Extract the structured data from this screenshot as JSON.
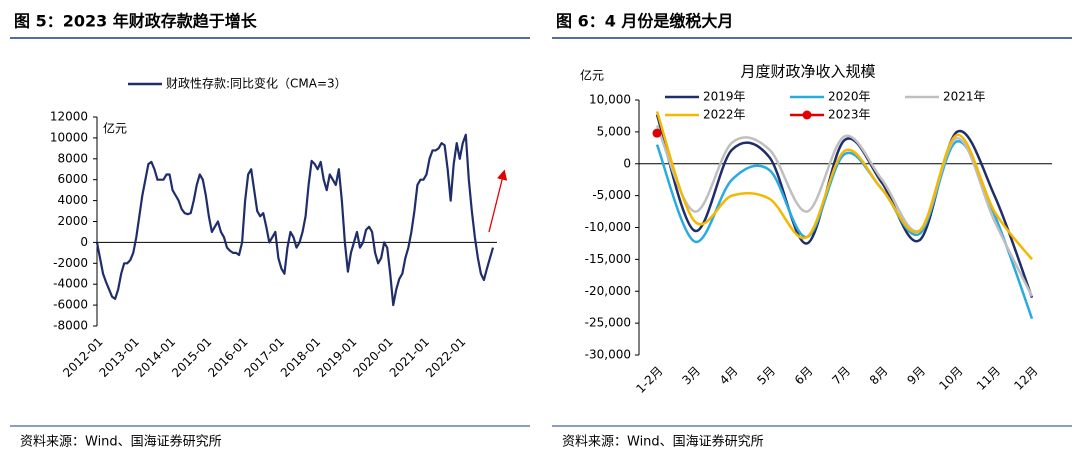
{
  "chart_data": [
    {
      "type": "line",
      "title": "图 5：2023 年财政存款趋于增长",
      "y_unit": "亿元",
      "source": "资料来源：Wind、国海证券研究所",
      "x": [
        "2012-01",
        null,
        null,
        null,
        null,
        null,
        null,
        null,
        null,
        null,
        null,
        null,
        "2013-01",
        null,
        null,
        null,
        null,
        null,
        null,
        null,
        null,
        null,
        null,
        null,
        "2014-01",
        null,
        null,
        null,
        null,
        null,
        null,
        null,
        null,
        null,
        null,
        null,
        "2015-01",
        null,
        null,
        null,
        null,
        null,
        null,
        null,
        null,
        null,
        null,
        null,
        "2016-01",
        null,
        null,
        null,
        null,
        null,
        null,
        null,
        null,
        null,
        null,
        null,
        "2017-01",
        null,
        null,
        null,
        null,
        null,
        null,
        null,
        null,
        null,
        null,
        null,
        "2018-01",
        null,
        null,
        null,
        null,
        null,
        null,
        null,
        null,
        null,
        null,
        null,
        "2019-01",
        null,
        null,
        null,
        null,
        null,
        null,
        null,
        null,
        null,
        null,
        null,
        "2020-01",
        null,
        null,
        null,
        null,
        null,
        null,
        null,
        null,
        null,
        null,
        null,
        "2021-01",
        null,
        null,
        null,
        null,
        null,
        null,
        null,
        null,
        null,
        null,
        null,
        "2022-01",
        null,
        null,
        null,
        null,
        null,
        null,
        null,
        null,
        null,
        null,
        null
      ],
      "series": [
        {
          "name": "财政性存款:同比变化（CMA=3）",
          "color": "#1f2d6b",
          "values": [
            0,
            -1500,
            -3000,
            -3800,
            -4500,
            -5200,
            -5400,
            -4500,
            -3000,
            -2000,
            -2000,
            -1700,
            -1000,
            500,
            2500,
            4500,
            6000,
            7500,
            7700,
            7000,
            6000,
            6000,
            6000,
            6500,
            6500,
            5000,
            4500,
            4000,
            3200,
            2800,
            2700,
            2800,
            4000,
            5500,
            6500,
            6000,
            4500,
            2500,
            1000,
            1500,
            2000,
            1000,
            500,
            -500,
            -800,
            -1000,
            -1000,
            -1200,
            0,
            4000,
            6500,
            7000,
            5000,
            3000,
            2500,
            2800,
            1500,
            0,
            500,
            1000,
            -1500,
            -2500,
            -3000,
            -500,
            1000,
            500,
            -500,
            0,
            1000,
            2500,
            5500,
            7800,
            7500,
            7000,
            7700,
            6000,
            5000,
            6500,
            6000,
            5500,
            7000,
            4000,
            0,
            -2800,
            -1000,
            0,
            1000,
            -500,
            0,
            1200,
            1500,
            1000,
            -1000,
            -2000,
            -1500,
            0,
            -500,
            -3000,
            -6000,
            -4500,
            -3500,
            -3000,
            -1500,
            -500,
            1000,
            3000,
            5500,
            6000,
            6000,
            6500,
            8000,
            8800,
            8800,
            9000,
            9500,
            9300,
            7000,
            4000,
            7500,
            9500,
            8000,
            9500,
            10300,
            6000,
            3000,
            500,
            -1500,
            -3000,
            -3600,
            -2500,
            -1500,
            -500
          ]
        }
      ],
      "ylim": [
        -8000,
        12000
      ],
      "yticks": [
        -8000,
        -6000,
        -4000,
        -2000,
        0,
        2000,
        4000,
        6000,
        8000,
        10000,
        12000
      ],
      "grid": false
    },
    {
      "type": "line",
      "title": "图 6：4 月份是缴税大月",
      "subtitle": "月度财政净收入规模",
      "y_unit": "亿元",
      "source": "资料来源：Wind、国海证券研究所",
      "categories": [
        "1-2月",
        "3月",
        "4月",
        "5月",
        "6月",
        "7月",
        "8月",
        "9月",
        "10月",
        "11月",
        "12月"
      ],
      "series": [
        {
          "name": "2019年",
          "color": "#1f2d6b",
          "values": [
            7700,
            -10500,
            2200,
            1000,
            -12500,
            3700,
            -3000,
            -12000,
            5000,
            -5000,
            -21000
          ]
        },
        {
          "name": "2020年",
          "color": "#29abe2",
          "values": [
            3000,
            -12200,
            -2500,
            -1000,
            -11500,
            1500,
            -4000,
            -11000,
            3500,
            -8000,
            -24300
          ]
        },
        {
          "name": "2021年",
          "color": "#bfbfbf",
          "values": [
            6000,
            -7500,
            3300,
            2200,
            -7500,
            4300,
            -2500,
            -10500,
            4000,
            -9000,
            -20800
          ]
        },
        {
          "name": "2022年",
          "color": "#f5b800",
          "values": [
            8200,
            -9000,
            -5000,
            -5500,
            -11500,
            2000,
            -4000,
            -10500,
            4500,
            -7500,
            -15000
          ]
        },
        {
          "name": "2023年",
          "color": "#e00000",
          "values": [
            4800,
            null,
            null,
            null,
            null,
            null,
            null,
            null,
            null,
            null,
            null
          ]
        }
      ],
      "ylim": [
        -30000,
        10000
      ],
      "yticks": [
        {
          "value": -30000,
          "label": "-30,000"
        },
        {
          "value": -25000,
          "label": "-25,000"
        },
        {
          "value": -20000,
          "label": "-20,000"
        },
        {
          "value": -15000,
          "label": "-15,000"
        },
        {
          "value": -10000,
          "label": "-10,000"
        },
        {
          "value": -5000,
          "label": "-5,000"
        },
        0,
        {
          "value": 5000,
          "label": "5,000"
        },
        {
          "value": 10000,
          "label": "10,000"
        }
      ],
      "grid": false
    }
  ]
}
